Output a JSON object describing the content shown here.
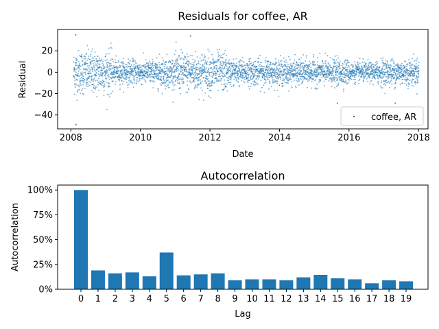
{
  "chart_data": [
    {
      "type": "scatter",
      "title": "Residuals for coffee, AR",
      "xlabel": "Date",
      "ylabel": "Residual",
      "xlim": [
        "2007-08-15",
        "2018-04-10"
      ],
      "ylim": [
        -53,
        40
      ],
      "xticks": [
        "2008",
        "2010",
        "2012",
        "2014",
        "2016",
        "2018"
      ],
      "yticks": [
        -40,
        -20,
        0,
        20
      ],
      "legend": {
        "position": "lower-right",
        "entries": [
          "coffee, AR"
        ]
      },
      "series": [
        {
          "name": "coffee, AR",
          "color": "#1f77b4",
          "date_start": "2008-01-30",
          "date_end": "2018-01-05",
          "note_values": "daily residuals; mostly within ±10, wider spread 2008–2009 and 2011–2012, extremes ≈ +35 (early 2008) and ≈ −49 (early 2008)",
          "highlight_points": [
            {
              "x": "2008-02-20",
              "y": 35
            },
            {
              "x": "2008-02-25",
              "y": -49
            },
            {
              "x": "2011-06-10",
              "y": 34
            },
            {
              "x": "2015-09-01",
              "y": -29
            },
            {
              "x": "2017-05-01",
              "y": -29
            }
          ]
        }
      ]
    },
    {
      "type": "bar",
      "title": "Autocorrelation",
      "xlabel": "Lag",
      "ylabel": "Autocorrelation",
      "ylim": [
        0,
        1.05
      ],
      "yticks": [
        "0%",
        "25%",
        "50%",
        "75%",
        "100%"
      ],
      "categories": [
        "0",
        "1",
        "2",
        "3",
        "4",
        "5",
        "6",
        "7",
        "8",
        "9",
        "10",
        "11",
        "12",
        "13",
        "14",
        "15",
        "16",
        "17",
        "18",
        "19"
      ],
      "values": [
        1.0,
        0.19,
        0.16,
        0.17,
        0.13,
        0.37,
        0.14,
        0.15,
        0.16,
        0.09,
        0.1,
        0.1,
        0.09,
        0.12,
        0.145,
        0.11,
        0.1,
        0.06,
        0.09,
        0.08
      ],
      "color": "#1f77b4"
    }
  ]
}
